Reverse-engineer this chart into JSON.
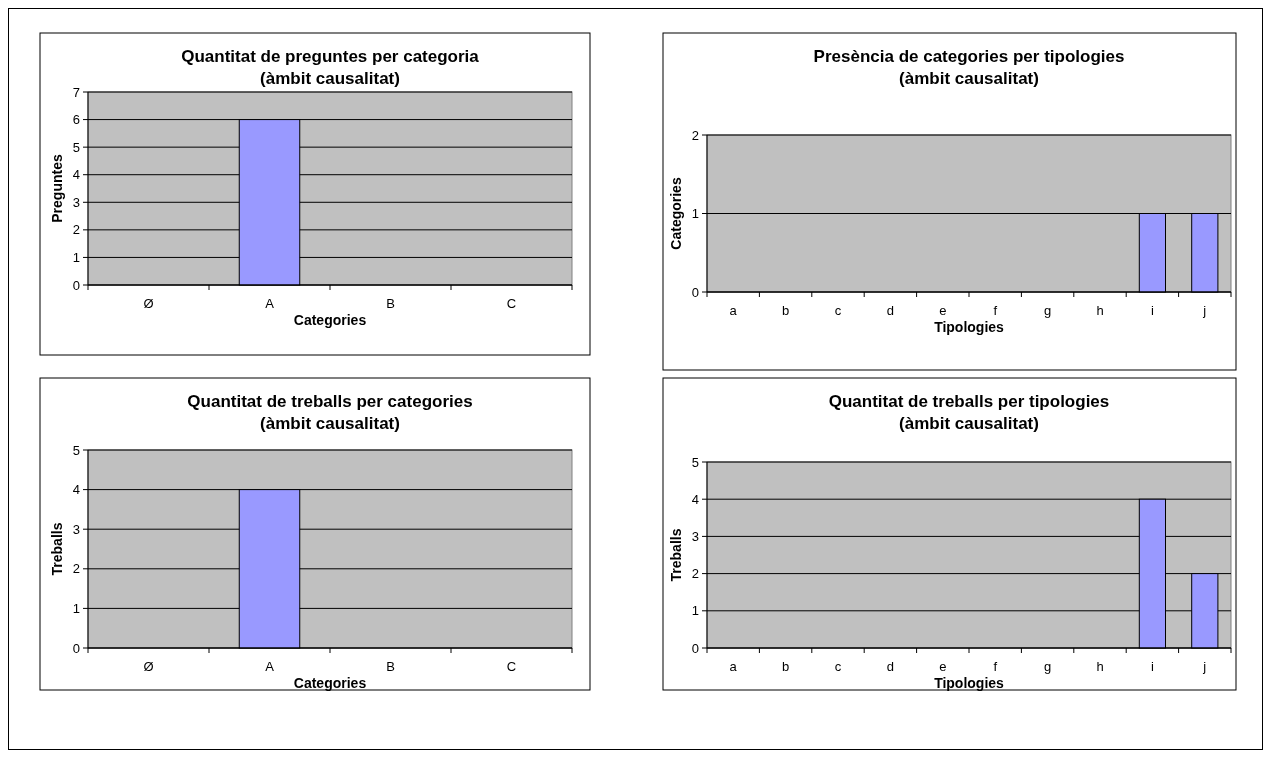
{
  "chart_data": [
    {
      "type": "bar",
      "title": "Quantitat de preguntes per categoria\n(àmbit causalitat)",
      "xlabel": "Categories",
      "ylabel": "Preguntes",
      "categories": [
        "Ø",
        "A",
        "B",
        "C"
      ],
      "values": [
        0,
        6,
        0,
        0
      ],
      "color": "#9999ff",
      "ylim": [
        0,
        7
      ],
      "yticks": [
        0,
        1,
        2,
        3,
        4,
        5,
        6,
        7
      ],
      "grid": "y"
    },
    {
      "type": "bar",
      "title": "Presència de categories per tipologies\n(àmbit causalitat)",
      "xlabel": "Tipologies",
      "ylabel": "Categories",
      "categories": [
        "a",
        "b",
        "c",
        "d",
        "e",
        "f",
        "g",
        "h",
        "i",
        "j"
      ],
      "values": [
        0,
        0,
        0,
        0,
        0,
        0,
        0,
        0,
        1,
        1
      ],
      "color": "#9999ff",
      "ylim": [
        0,
        2
      ],
      "yticks": [
        0,
        1,
        2
      ],
      "grid": "y"
    },
    {
      "type": "bar",
      "title": "Quantitat de treballs per categories\n(àmbit causalitat)",
      "xlabel": "Categories",
      "ylabel": "Treballs",
      "categories": [
        "Ø",
        "A",
        "B",
        "C"
      ],
      "values": [
        0,
        4,
        0,
        0
      ],
      "color": "#9999ff",
      "ylim": [
        0,
        5
      ],
      "yticks": [
        0,
        1,
        2,
        3,
        4,
        5
      ],
      "grid": "y"
    },
    {
      "type": "bar",
      "title": "Quantitat de treballs per tipologies\n(àmbit causalitat)",
      "xlabel": "Tipologies",
      "ylabel": "Treballs",
      "categories": [
        "a",
        "b",
        "c",
        "d",
        "e",
        "f",
        "g",
        "h",
        "i",
        "j"
      ],
      "values": [
        0,
        0,
        0,
        0,
        0,
        0,
        0,
        0,
        4,
        2
      ],
      "color": "#9999ff",
      "ylim": [
        0,
        5
      ],
      "yticks": [
        0,
        1,
        2,
        3,
        4,
        5
      ],
      "grid": "y"
    }
  ]
}
